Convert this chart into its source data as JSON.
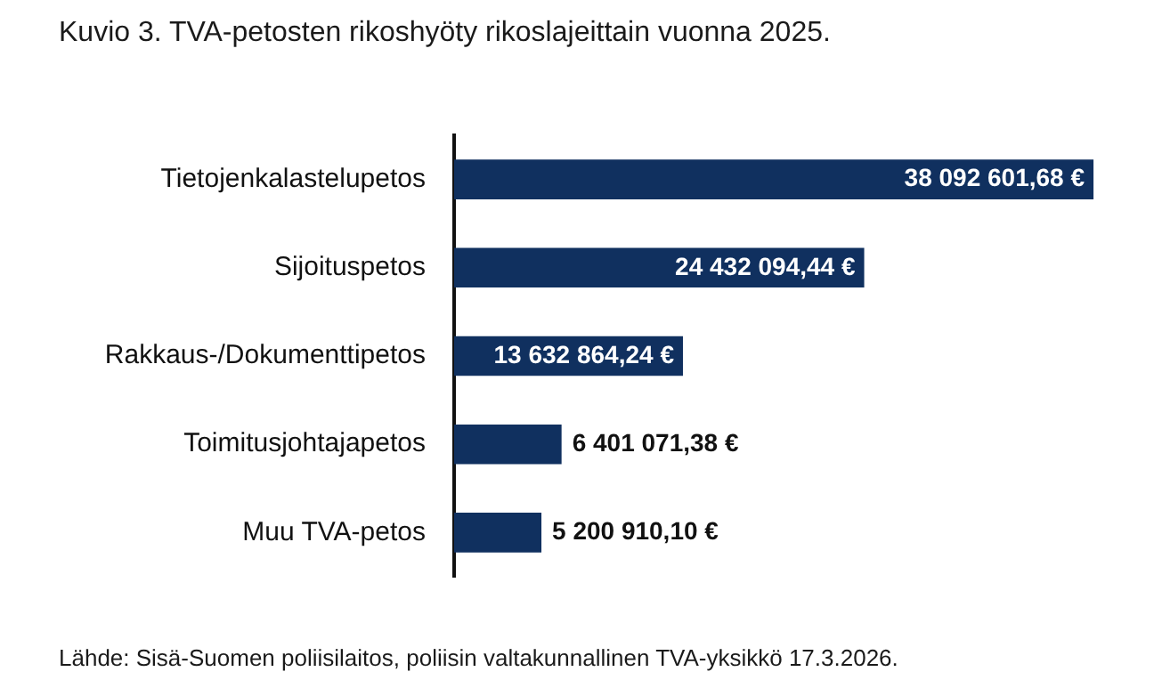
{
  "chart_data": {
    "type": "bar",
    "orientation": "horizontal",
    "title": "Kuvio 3.  TVA-petosten rikoshyöty rikoslajeittain vuonna 2025.",
    "categories": [
      "Tietojenkalastelupetos",
      "Sijoituspetos",
      "Rakkaus-/Dokumenttipetos",
      "Toimitusjohtajapetos",
      "Muu TVA-petos"
    ],
    "values": [
      38092601.68,
      24432094.44,
      13632864.24,
      6401071.38,
      5200910.1
    ],
    "value_labels": [
      "38 092 601,68 €",
      "24 432 094,44 €",
      "13 632 864,24 €",
      "6 401 071,38 €",
      "5 200 910,10 €"
    ],
    "color": "#10305f",
    "grid": false,
    "legend": false,
    "annotations": [
      "Lähde: Sisä-Suomen poliisilaitos, poliisin valtakunnallinen TVA-yksikkö 17.3.2026."
    ]
  }
}
